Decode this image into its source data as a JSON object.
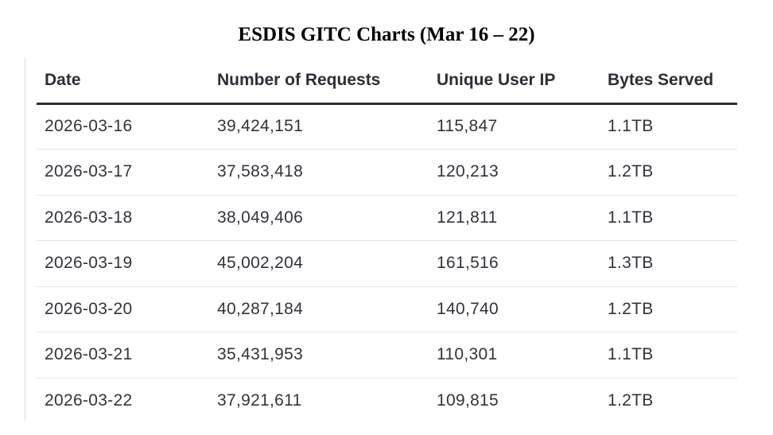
{
  "chart_data": {
    "type": "table",
    "title": "ESDIS GITC Charts (Mar 16 – 22)",
    "columns": [
      "Date",
      "Number of Requests",
      "Unique User IP",
      "Bytes Served"
    ],
    "rows": [
      [
        "2026-03-16",
        "39,424,151",
        "115,847",
        "1.1TB"
      ],
      [
        "2026-03-17",
        "37,583,418",
        "120,213",
        "1.2TB"
      ],
      [
        "2026-03-18",
        "38,049,406",
        "121,811",
        "1.1TB"
      ],
      [
        "2026-03-19",
        "45,002,204",
        "161,516",
        "1.3TB"
      ],
      [
        "2026-03-20",
        "40,287,184",
        "140,740",
        "1.2TB"
      ],
      [
        "2026-03-21",
        "35,431,953",
        "110,301",
        "1.1TB"
      ],
      [
        "2026-03-22",
        "37,921,611",
        "109,815",
        "1.2TB"
      ]
    ]
  }
}
